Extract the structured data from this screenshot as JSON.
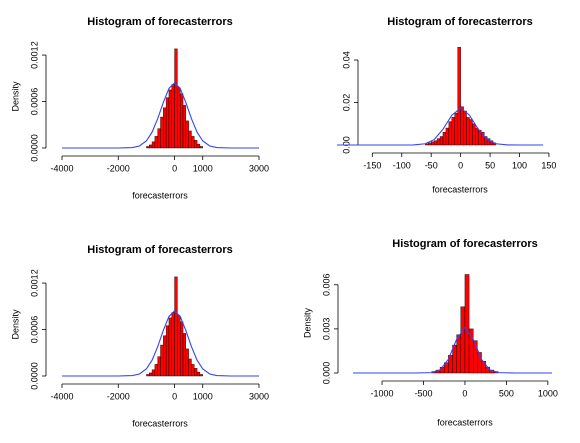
{
  "chart_data": [
    {
      "type": "histogram",
      "title": "Histogram of forecasterrors",
      "xlabel": "forecasterrors",
      "ylabel": "Density",
      "bins": [
        -1000,
        -900,
        -800,
        -700,
        -600,
        -500,
        -400,
        -300,
        -200,
        -100,
        0,
        100,
        200,
        300,
        400,
        500,
        600,
        700,
        800,
        900,
        1000
      ],
      "values": [
        2e-05,
        4e-05,
        8e-05,
        0.00015,
        0.00025,
        0.0004,
        0.00052,
        0.00065,
        0.00075,
        0.00082,
        0.00128,
        0.00078,
        0.0007,
        0.00055,
        0.00035,
        0.00022,
        0.00015,
        0.0001,
        5e-05,
        2e-05
      ],
      "color": "#ff0000",
      "lines": [
        {
          "color": "#3344ee",
          "x": [
            -4000,
            -2000,
            -1500,
            -1250,
            -1000,
            -800,
            -600,
            -400,
            -200,
            0,
            200,
            400,
            600,
            800,
            1000,
            1250,
            1500,
            2000,
            3000
          ],
          "values": [
            0,
            0,
            5.6e-06,
            2.6e-05,
            9.2e-05,
            0.000204,
            0.000378,
            0.000589,
            0.000769,
            0.00084,
            0.000769,
            0.000589,
            0.000378,
            0.000204,
            9.2e-05,
            2.6e-05,
            5.6e-06,
            0,
            0
          ]
        }
      ],
      "xlim": [
        -4000,
        3000
      ],
      "xticks": [
        -4000,
        -2000,
        0,
        1000,
        3000
      ],
      "ylim": [
        0,
        0.00133
      ],
      "yticks": [
        {
          "value": 0,
          "label": "0.0000"
        },
        {
          "value": 0.0006,
          "label": "0.0006"
        },
        {
          "value": 0.0012,
          "label": "0.0012"
        }
      ]
    },
    {
      "type": "histogram",
      "title": "Histogram of forecasterrors",
      "xlabel": "forecasterrors",
      "bins": [
        -60,
        -55,
        -50,
        -45,
        -40,
        -35,
        -30,
        -25,
        -20,
        -15,
        -10,
        -5,
        0,
        5,
        10,
        15,
        20,
        25,
        30,
        35,
        40,
        45,
        50,
        55,
        60
      ],
      "values": [
        0.0005,
        0.001,
        0.0015,
        0.002,
        0.003,
        0.004,
        0.006,
        0.008,
        0.011,
        0.013,
        0.015,
        0.046,
        0.018,
        0.016,
        0.013,
        0.012,
        0.01,
        0.008,
        0.007,
        0.006,
        0.004,
        0.003,
        0.002,
        0.001
      ],
      "color": "#ff0000",
      "lines": [
        {
          "color": "#3344ee",
          "x": [
            -210,
            -100,
            -80,
            -60,
            -45,
            -30,
            -15,
            0,
            15,
            30,
            45,
            60,
            80,
            100,
            140
          ],
          "values": [
            0,
            0,
            4e-05,
            0.00058,
            0.00256,
            0.00741,
            0.01402,
            0.01734,
            0.01402,
            0.00741,
            0.00256,
            0.00058,
            4e-05,
            0,
            0
          ]
        }
      ],
      "xlim": [
        -210,
        145
      ],
      "xticks": [
        -150,
        -100,
        -50,
        0,
        50,
        100,
        150
      ],
      "ylim": [
        0,
        0.048
      ],
      "yticks": [
        {
          "value": 0,
          "label": "0.00"
        },
        {
          "value": 0.02,
          "label": "0.02"
        },
        {
          "value": 0.04,
          "label": "0.04"
        }
      ]
    },
    {
      "type": "histogram",
      "title": "Histogram of forecasterrors",
      "xlabel": "forecasterrors",
      "ylabel": "Density",
      "bins": [
        -1000,
        -900,
        -800,
        -700,
        -600,
        -500,
        -400,
        -300,
        -200,
        -100,
        0,
        100,
        200,
        300,
        400,
        500,
        600,
        700,
        800,
        900,
        1000
      ],
      "values": [
        2e-05,
        4e-05,
        8e-05,
        0.00015,
        0.00025,
        0.0004,
        0.00052,
        0.00065,
        0.00075,
        0.00082,
        0.00128,
        0.00078,
        0.0007,
        0.00055,
        0.00035,
        0.00022,
        0.00015,
        0.0001,
        5e-05,
        2e-05
      ],
      "color": "#ff0000",
      "lines": [
        {
          "color": "#3344ee",
          "x": [
            -4000,
            -2000,
            -1500,
            -1250,
            -1000,
            -800,
            -600,
            -400,
            -200,
            0,
            200,
            400,
            600,
            800,
            1000,
            1250,
            1500,
            2000,
            3000
          ],
          "values": [
            0,
            0,
            5.6e-06,
            2.6e-05,
            9.2e-05,
            0.000204,
            0.000378,
            0.000589,
            0.000769,
            0.00084,
            0.000769,
            0.000589,
            0.000378,
            0.000204,
            9.2e-05,
            2.6e-05,
            5.6e-06,
            0,
            0
          ]
        }
      ],
      "xlim": [
        -4000,
        3000
      ],
      "xticks": [
        -4000,
        -2000,
        0,
        1000,
        3000
      ],
      "ylim": [
        0,
        0.00133
      ],
      "yticks": [
        {
          "value": 0,
          "label": "0.0000"
        },
        {
          "value": 0.0006,
          "label": "0.0006"
        },
        {
          "value": 0.0012,
          "label": "0.0012"
        }
      ]
    },
    {
      "type": "histogram",
      "title": "Histogram of forecasterrors",
      "xlabel": "forecasterrors",
      "ylabel": "Density",
      "bins": [
        -400,
        -350,
        -300,
        -250,
        -200,
        -150,
        -100,
        -50,
        0,
        50,
        100,
        150,
        200,
        250,
        300,
        350,
        400
      ],
      "values": [
        0.0001,
        0.0002,
        0.0004,
        0.0007,
        0.0012,
        0.0019,
        0.0026,
        0.0045,
        0.0067,
        0.003,
        0.0022,
        0.0014,
        0.0008,
        0.0004,
        0.0002,
        0.0001
      ],
      "color": "#ff0000",
      "lines": [
        {
          "color": "#3344ee",
          "x": [
            -1350,
            -600,
            -400,
            -300,
            -200,
            -100,
            0,
            100,
            200,
            300,
            400,
            600,
            1050
          ],
          "values": [
            0,
            0,
            2.5e-05,
            0.00021,
            0.00093,
            0.00229,
            0.0031,
            0.00229,
            0.00093,
            0.00021,
            2.5e-05,
            0,
            0
          ]
        }
      ],
      "xlim": [
        -1350,
        1050
      ],
      "xticks": [
        -1000,
        -500,
        0,
        500,
        1000
      ],
      "ylim": [
        0,
        0.0068
      ],
      "yticks": [
        {
          "value": 0,
          "label": "0.000"
        },
        {
          "value": 0.003,
          "label": "0.003"
        },
        {
          "value": 0.006,
          "label": "0.006"
        }
      ]
    }
  ]
}
